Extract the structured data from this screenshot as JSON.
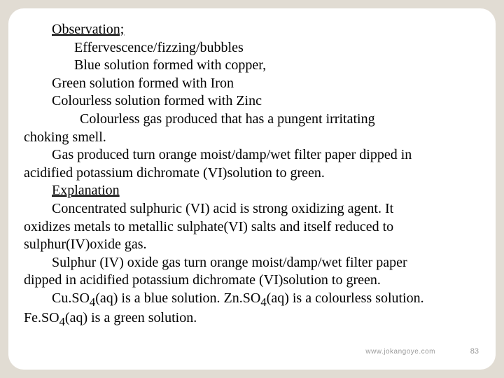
{
  "slide": {
    "background_color": "#e1dcd3",
    "card_color": "#ffffff",
    "text_color": "#000000",
    "font_family": "Times New Roman",
    "base_fontsize_pt": 15,
    "heading": "Observation;",
    "lines": {
      "l1": "Effervescence/fizzing/bubbles",
      "l2": "Blue solution formed with copper,",
      "l3": "Green solution formed with Iron",
      "l4": "Colourless solution formed with Zinc",
      "l5a": "Colourless gas produced that has a pungent irritating",
      "l5b": "choking smell.",
      "l6a": "Gas produced turn orange moist/damp/wet filter paper dipped in",
      "l6b": "acidified potassium dichromate (VI)solution to green.",
      "exp_heading": "Explanation",
      "e1a": "Concentrated sulphuric (VI) acid is strong oxidizing agent. It",
      "e1b": "oxidizes metals to metallic sulphate(VI) salts and itself reduced to",
      "e1c": "sulphur(IV)oxide gas.",
      "e2a": "Sulphur (IV) oxide gas turn orange moist/damp/wet filter paper",
      "e2b": "dipped in acidified potassium dichromate (VI)solution to green.",
      "e3_pre": "Cu.SO",
      "e3_sub1": "4",
      "e3_mid1": "(aq) is a blue solution. Zn.SO",
      "e3_sub2": "4",
      "e3_mid2": "(aq) is a colourless solution.",
      "e4_pre": "Fe.SO",
      "e4_sub": "4",
      "e4_post": "(aq) is a green solution."
    },
    "footer": {
      "url": "www.jokangoye.com",
      "page": "83",
      "footer_color": "#9a9a9a",
      "footer_fontsize_pt": 8
    }
  }
}
